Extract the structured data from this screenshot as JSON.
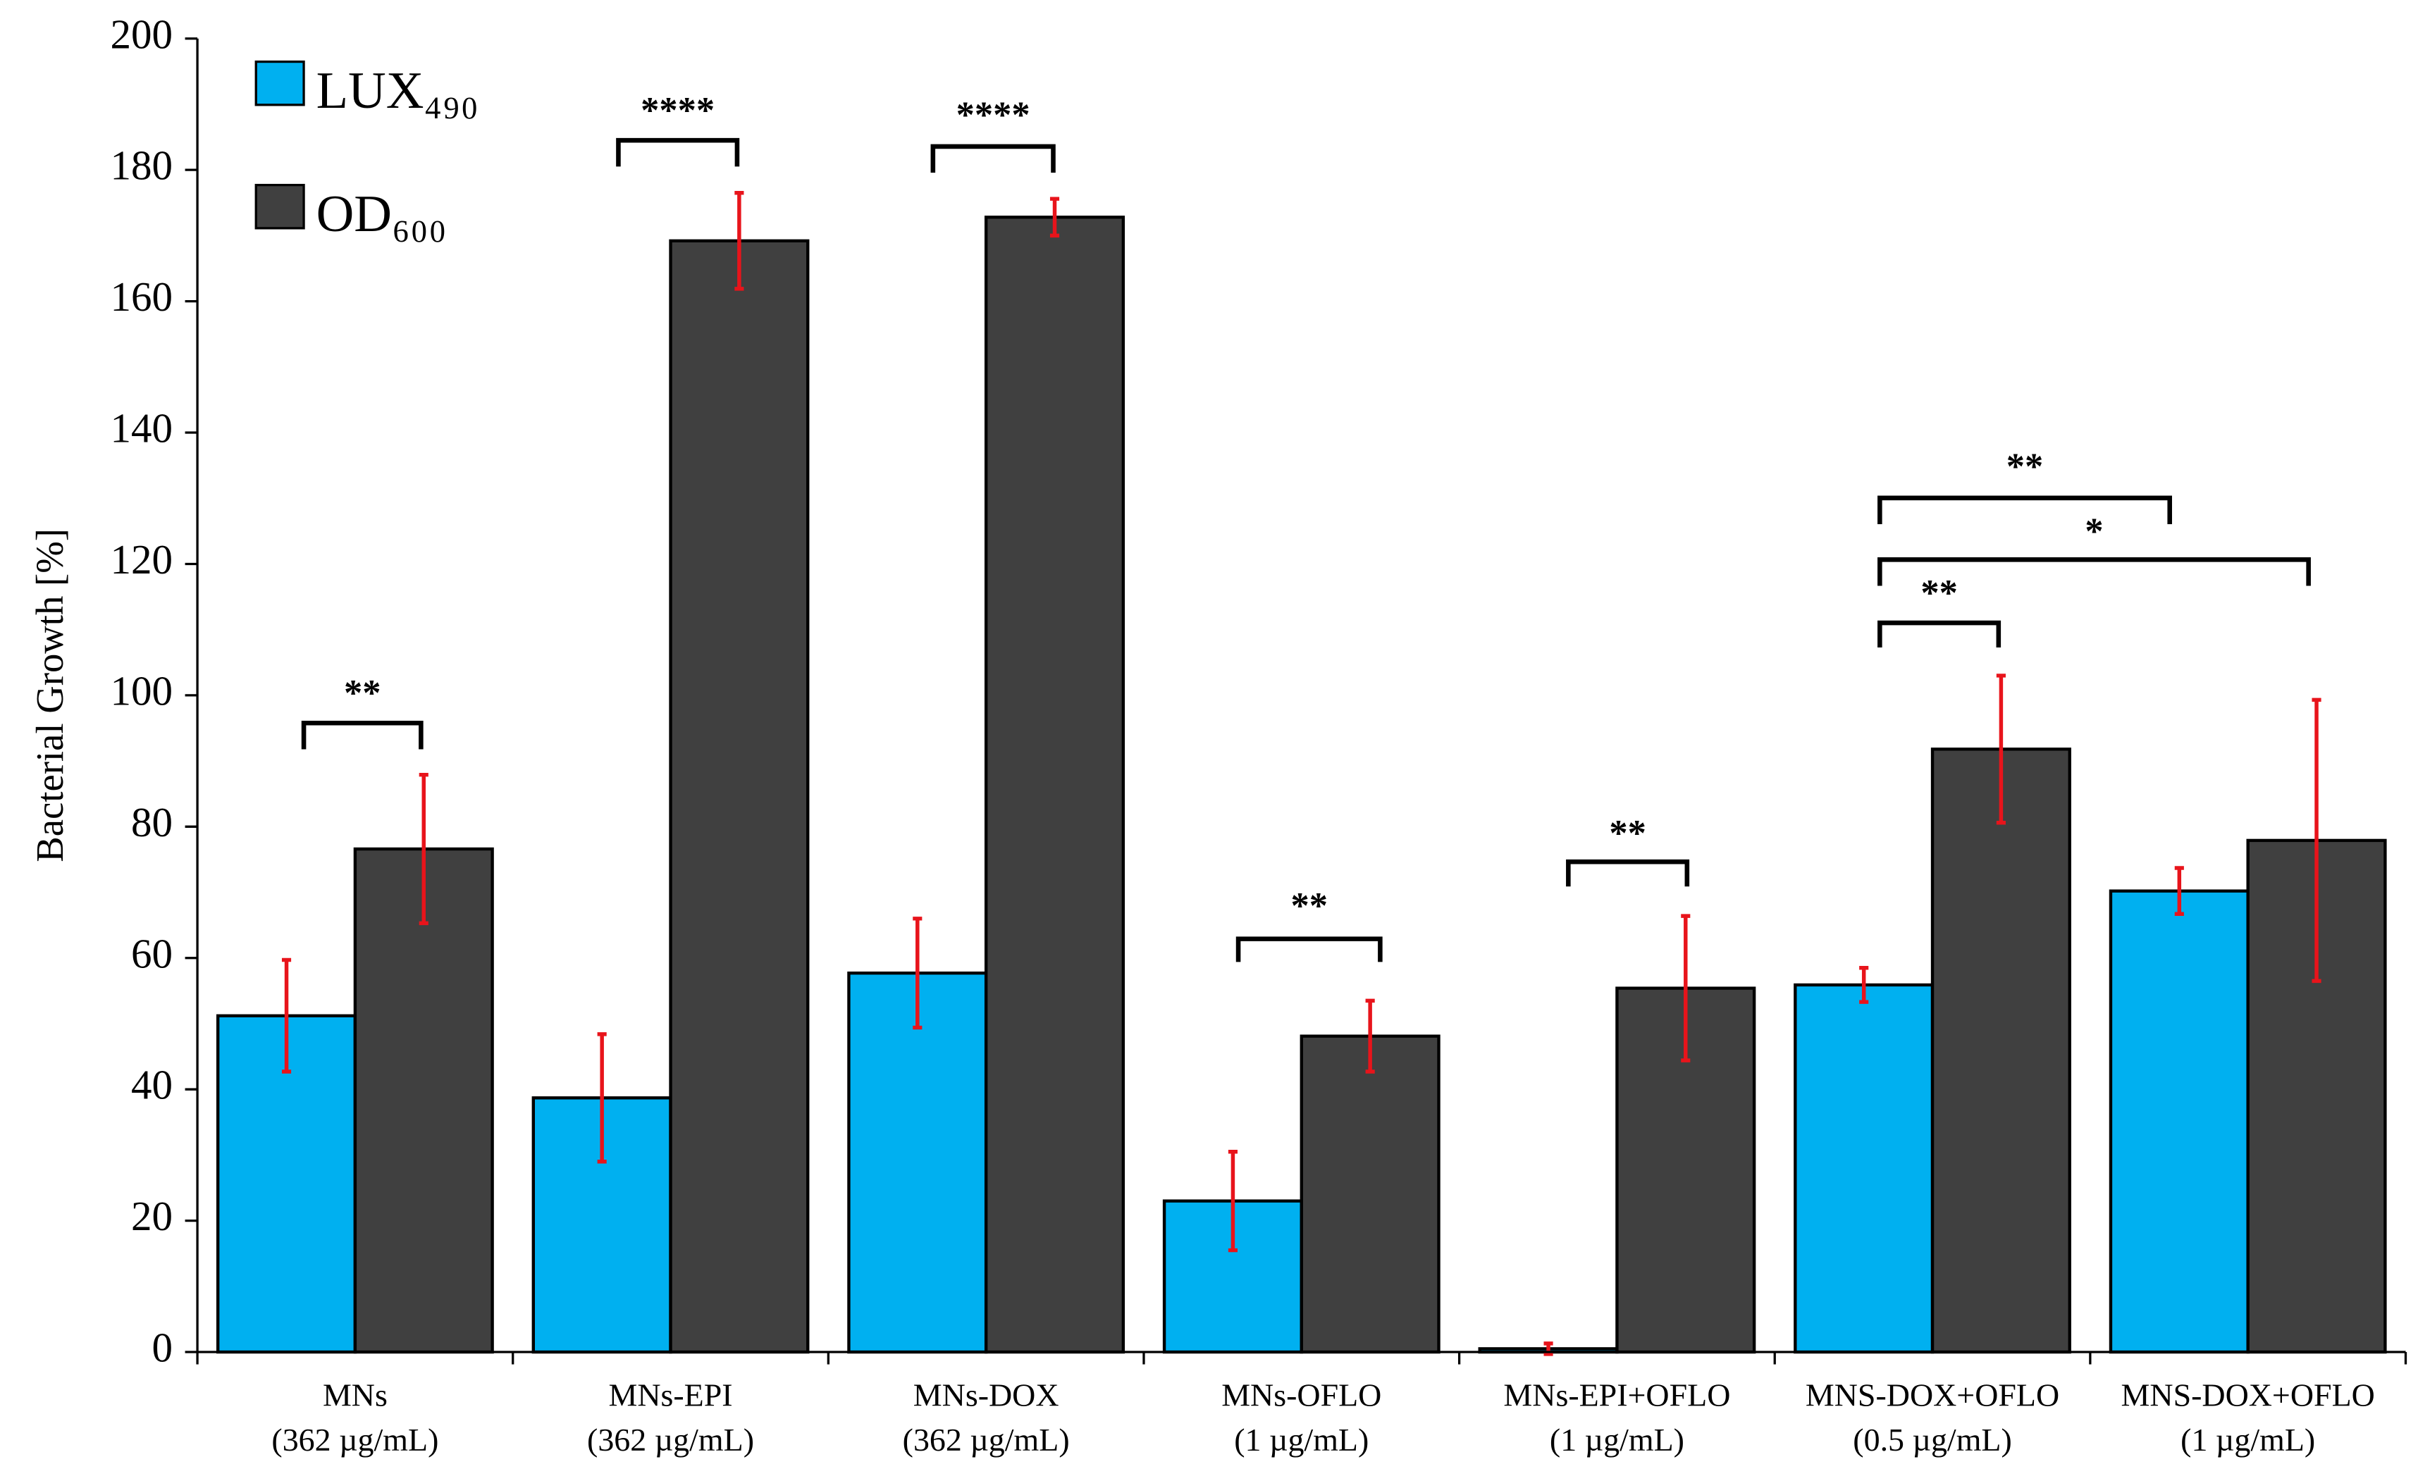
{
  "chart_data": {
    "type": "bar",
    "y_label": "Bacterial Growth [%]",
    "categories": [
      "MNs\n(362 µg/mL)",
      "MNs-EPI\n(362 µg/mL)",
      "MNs-DOX\n(362 µg/mL)",
      "MNs-OFLO\n(1 µg/mL)",
      "MNs-EPI+OFLO\n(1 µg/mL)",
      "MNS-DOX+OFLO\n(0.5 µg/mL)",
      "MNS-DOX+OFLO\n(1 µg/mL)"
    ],
    "series": [
      {
        "name": "LUX₄₉₀",
        "color": "#00b0f0",
        "values": [
          51.2,
          38.7,
          57.7,
          23,
          0.5,
          55.9,
          70.2
        ],
        "error": [
          8.5,
          9.7,
          8.3,
          7.5,
          0.8,
          2.6,
          3.5
        ]
      },
      {
        "name": "OD₆₀₀",
        "color": "#404040",
        "values": [
          76.6,
          169.2,
          172.8,
          48.1,
          55.4,
          91.8,
          77.9
        ],
        "error": [
          11.3,
          7.3,
          2.8,
          5.4,
          11,
          11.2,
          21.4
        ]
      }
    ],
    "error_color": "#e8141b",
    "ylim": [
      0,
      200
    ],
    "yticks": [
      0,
      20,
      40,
      60,
      80,
      100,
      120,
      140,
      160,
      180,
      200
    ],
    "legend": "top-left",
    "annotations": [
      "**",
      "****",
      "****",
      "**",
      "**",
      "**",
      "*",
      "**"
    ]
  }
}
